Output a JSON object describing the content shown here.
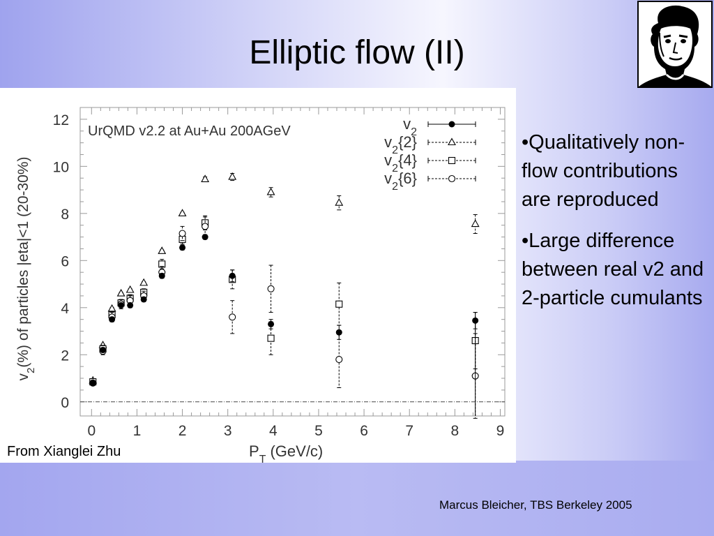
{
  "slide": {
    "title": "Elliptic flow (II)",
    "bullets": [
      "•Qualitatively non-flow contributions are reproduced",
      "•Large difference between real v2 and 2-particle cumulants"
    ],
    "credit": "From Xianglei Zhu",
    "footer": "Marcus Bleicher, TBS Berkeley 2005",
    "logo_icon": "goethe-portrait-icon"
  },
  "chart_data": {
    "type": "scatter",
    "annotation": "UrQMD v2.2 at Au+Au 200AGeV",
    "xlabel": "P_T (GeV/c)",
    "ylabel": "v_2(%) of particles |eta|<1 (20-30%)",
    "xlim": [
      -0.25,
      9.1
    ],
    "ylim": [
      -0.6,
      12.5
    ],
    "xticks": [
      0,
      1,
      2,
      3,
      4,
      5,
      6,
      7,
      8,
      9
    ],
    "yticks": [
      0,
      2,
      4,
      6,
      8,
      10,
      12
    ],
    "grid": false,
    "legend_position": "top-right",
    "series": [
      {
        "name": "v_2",
        "marker": "filled-circle",
        "line": "solid",
        "points": [
          {
            "x": 0.03,
            "y": 0.8,
            "err": 0.1
          },
          {
            "x": 0.25,
            "y": 2.2,
            "err": 0.1
          },
          {
            "x": 0.45,
            "y": 3.5,
            "err": 0.1
          },
          {
            "x": 0.65,
            "y": 4.1,
            "err": 0.1
          },
          {
            "x": 0.85,
            "y": 4.1,
            "err": 0.1
          },
          {
            "x": 1.15,
            "y": 4.35,
            "err": 0.1
          },
          {
            "x": 1.55,
            "y": 5.35,
            "err": 0.1
          },
          {
            "x": 2.0,
            "y": 6.55,
            "err": 0.1
          },
          {
            "x": 2.5,
            "y": 7.0,
            "err": 0.1
          },
          {
            "x": 3.1,
            "y": 5.35,
            "err": 0.25
          },
          {
            "x": 3.95,
            "y": 3.3,
            "err": 0.2
          },
          {
            "x": 5.45,
            "y": 2.95,
            "err": 0.3
          },
          {
            "x": 8.45,
            "y": 3.45,
            "err": 0.35
          }
        ]
      },
      {
        "name": "v_2{2}",
        "marker": "open-triangle",
        "line": "dashed",
        "points": [
          {
            "x": 0.03,
            "y": 0.9,
            "err": 0.05
          },
          {
            "x": 0.25,
            "y": 2.4,
            "err": 0.05
          },
          {
            "x": 0.45,
            "y": 3.95,
            "err": 0.05
          },
          {
            "x": 0.65,
            "y": 4.6,
            "err": 0.05
          },
          {
            "x": 0.85,
            "y": 4.75,
            "err": 0.05
          },
          {
            "x": 1.15,
            "y": 5.05,
            "err": 0.05
          },
          {
            "x": 1.55,
            "y": 6.4,
            "err": 0.05
          },
          {
            "x": 2.0,
            "y": 8.0,
            "err": 0.05
          },
          {
            "x": 2.5,
            "y": 9.45,
            "err": 0.1
          },
          {
            "x": 3.1,
            "y": 9.55,
            "err": 0.15
          },
          {
            "x": 3.95,
            "y": 8.9,
            "err": 0.2
          },
          {
            "x": 5.45,
            "y": 8.45,
            "err": 0.3
          },
          {
            "x": 8.45,
            "y": 7.55,
            "err": 0.4
          }
        ]
      },
      {
        "name": "v_2{4}",
        "marker": "open-square",
        "line": "dashed",
        "points": [
          {
            "x": 0.03,
            "y": 0.85,
            "err": 0.1
          },
          {
            "x": 0.25,
            "y": 2.25,
            "err": 0.15
          },
          {
            "x": 0.45,
            "y": 3.7,
            "err": 0.15
          },
          {
            "x": 0.65,
            "y": 4.2,
            "err": 0.15
          },
          {
            "x": 0.85,
            "y": 4.4,
            "err": 0.15
          },
          {
            "x": 1.15,
            "y": 4.65,
            "err": 0.15
          },
          {
            "x": 1.55,
            "y": 5.85,
            "err": 0.2
          },
          {
            "x": 2.0,
            "y": 6.9,
            "err": 0.2
          },
          {
            "x": 2.5,
            "y": 7.6,
            "err": 0.3
          },
          {
            "x": 3.1,
            "y": 5.2,
            "err": 0.4
          },
          {
            "x": 3.95,
            "y": 2.7,
            "err": 0.7
          },
          {
            "x": 5.45,
            "y": 4.15,
            "err": 0.9
          },
          {
            "x": 8.45,
            "y": 2.6,
            "err": 1.2
          }
        ]
      },
      {
        "name": "v_2{6}",
        "marker": "open-circle",
        "line": "dashed",
        "points": [
          {
            "x": 0.03,
            "y": 0.8,
            "err": 0.1
          },
          {
            "x": 0.25,
            "y": 2.15,
            "err": 0.15
          },
          {
            "x": 0.45,
            "y": 3.6,
            "err": 0.2
          },
          {
            "x": 0.65,
            "y": 4.15,
            "err": 0.2
          },
          {
            "x": 0.85,
            "y": 4.3,
            "err": 0.2
          },
          {
            "x": 1.15,
            "y": 4.5,
            "err": 0.2
          },
          {
            "x": 1.55,
            "y": 5.5,
            "err": 0.25
          },
          {
            "x": 2.0,
            "y": 7.15,
            "err": 0.3
          },
          {
            "x": 2.5,
            "y": 7.45,
            "err": 0.4
          },
          {
            "x": 3.1,
            "y": 3.6,
            "err": 0.7
          },
          {
            "x": 3.95,
            "y": 4.8,
            "err": 1.0
          },
          {
            "x": 5.45,
            "y": 1.8,
            "err": 1.2
          },
          {
            "x": 8.45,
            "y": 1.1,
            "err": 1.8
          }
        ]
      }
    ]
  }
}
